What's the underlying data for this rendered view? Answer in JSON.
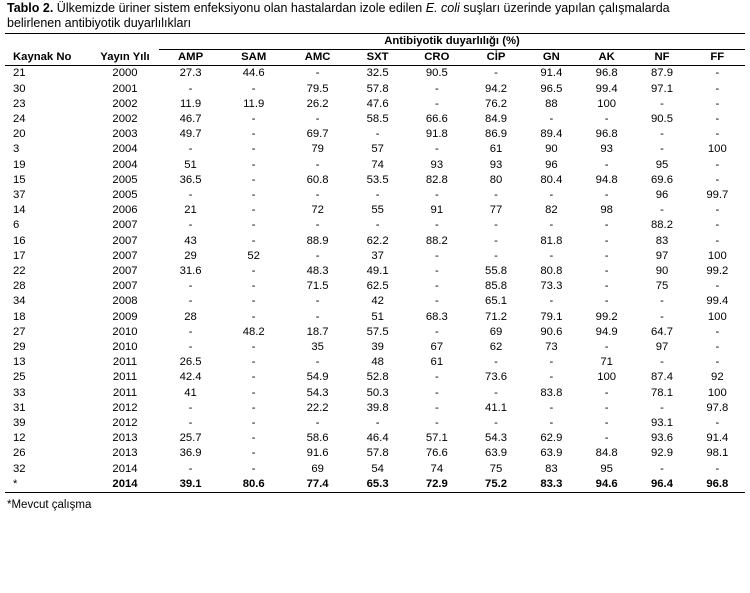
{
  "caption": {
    "label": "Tablo 2.",
    "text_before": " Ülkemizde üriner sistem enfeksiyonu olan hastalardan izole edilen ",
    "organism": "E. coli",
    "text_after": " suşları üzerinde yapılan çalışmalarda",
    "line2": "belirlenen antibiyotik duyarlılıkları"
  },
  "table": {
    "group_header": "Antibiyotik duyarlılığı (%)",
    "headers": [
      "Kaynak No",
      "Yayın Yılı",
      "AMP",
      "SAM",
      "AMC",
      "SXT",
      "CRO",
      "CİP",
      "GN",
      "AK",
      "NF",
      "FF"
    ],
    "rows": [
      [
        "21",
        "2000",
        "27.3",
        "44.6",
        "-",
        "32.5",
        "90.5",
        "-",
        "91.4",
        "96.8",
        "87.9",
        "-"
      ],
      [
        "30",
        "2001",
        "-",
        "-",
        "79.5",
        "57.8",
        "-",
        "94.2",
        "96.5",
        "99.4",
        "97.1",
        "-"
      ],
      [
        "23",
        "2002",
        "11.9",
        "11.9",
        "26.2",
        "47.6",
        "-",
        "76.2",
        "88",
        "100",
        "-",
        "-"
      ],
      [
        "24",
        "2002",
        "46.7",
        "-",
        "-",
        "58.5",
        "66.6",
        "84.9",
        "-",
        "-",
        "90.5",
        "-"
      ],
      [
        "20",
        "2003",
        "49.7",
        "-",
        "69.7",
        "-",
        "91.8",
        "86.9",
        "89.4",
        "96.8",
        "-",
        "-"
      ],
      [
        "3",
        "2004",
        "-",
        "-",
        "79",
        "57",
        "-",
        "61",
        "90",
        "93",
        "-",
        "100"
      ],
      [
        "19",
        "2004",
        "51",
        "-",
        "-",
        "74",
        "93",
        "93",
        "96",
        "-",
        "95",
        "-"
      ],
      [
        "15",
        "2005",
        "36.5",
        "-",
        "60.8",
        "53.5",
        "82.8",
        "80",
        "80.4",
        "94.8",
        "69.6",
        "-"
      ],
      [
        "37",
        "2005",
        "-",
        "-",
        "-",
        "-",
        "-",
        "-",
        "-",
        "-",
        "96",
        "99.7"
      ],
      [
        "14",
        "2006",
        "21",
        "-",
        "72",
        "55",
        "91",
        "77",
        "82",
        "98",
        "-",
        "-"
      ],
      [
        "6",
        "2007",
        "-",
        "-",
        "-",
        "-",
        "-",
        "-",
        "-",
        "-",
        "88.2",
        "-"
      ],
      [
        "16",
        "2007",
        "43",
        "-",
        "88.9",
        "62.2",
        "88.2",
        "-",
        "81.8",
        "-",
        "83",
        "-"
      ],
      [
        "17",
        "2007",
        "29",
        "52",
        "-",
        "37",
        "-",
        "-",
        "-",
        "-",
        "97",
        "100"
      ],
      [
        "22",
        "2007",
        "31.6",
        "-",
        "48.3",
        "49.1",
        "-",
        "55.8",
        "80.8",
        "-",
        "90",
        "99.2"
      ],
      [
        "28",
        "2007",
        "-",
        "-",
        "71.5",
        "62.5",
        "-",
        "85.8",
        "73.3",
        "-",
        "75",
        "-"
      ],
      [
        "34",
        "2008",
        "-",
        "-",
        "-",
        "42",
        "-",
        "65.1",
        "-",
        "-",
        "-",
        "99.4"
      ],
      [
        "18",
        "2009",
        "28",
        "-",
        "-",
        "51",
        "68.3",
        "71.2",
        "79.1",
        "99.2",
        "-",
        "100"
      ],
      [
        "27",
        "2010",
        "-",
        "48.2",
        "18.7",
        "57.5",
        "-",
        "69",
        "90.6",
        "94.9",
        "64.7",
        "-"
      ],
      [
        "29",
        "2010",
        "-",
        "-",
        "35",
        "39",
        "67",
        "62",
        "73",
        "-",
        "97",
        "-"
      ],
      [
        "13",
        "2011",
        "26.5",
        "-",
        "-",
        "48",
        "61",
        "-",
        "-",
        "71",
        "-",
        "-"
      ],
      [
        "25",
        "2011",
        "42.4",
        "-",
        "54.9",
        "52.8",
        "-",
        "73.6",
        "-",
        "100",
        "87.4",
        "92"
      ],
      [
        "33",
        "2011",
        "41",
        "-",
        "54.3",
        "50.3",
        "-",
        "-",
        "83.8",
        "-",
        "78.1",
        "100"
      ],
      [
        "31",
        "2012",
        "-",
        "-",
        "22.2",
        "39.8",
        "-",
        "41.1",
        "-",
        "-",
        "-",
        "97.8"
      ],
      [
        "39",
        "2012",
        "-",
        "-",
        "-",
        "-",
        "-",
        "-",
        "-",
        "-",
        "93.1",
        "-"
      ],
      [
        "12",
        "2013",
        "25.7",
        "-",
        "58.6",
        "46.4",
        "57.1",
        "54.3",
        "62.9",
        "-",
        "93.6",
        "91.4"
      ],
      [
        "26",
        "2013",
        "36.9",
        "-",
        "91.6",
        "57.8",
        "76.6",
        "63.9",
        "63.9",
        "84.8",
        "92.9",
        "98.1"
      ],
      [
        "32",
        "2014",
        "-",
        "-",
        "69",
        "54",
        "74",
        "75",
        "83",
        "95",
        "-",
        "-"
      ],
      [
        "*",
        "2014",
        "39.1",
        "80.6",
        "77.4",
        "65.3",
        "72.9",
        "75.2",
        "83.3",
        "94.6",
        "96.4",
        "96.8"
      ]
    ]
  },
  "footnote": "*Mevcut çalışma"
}
